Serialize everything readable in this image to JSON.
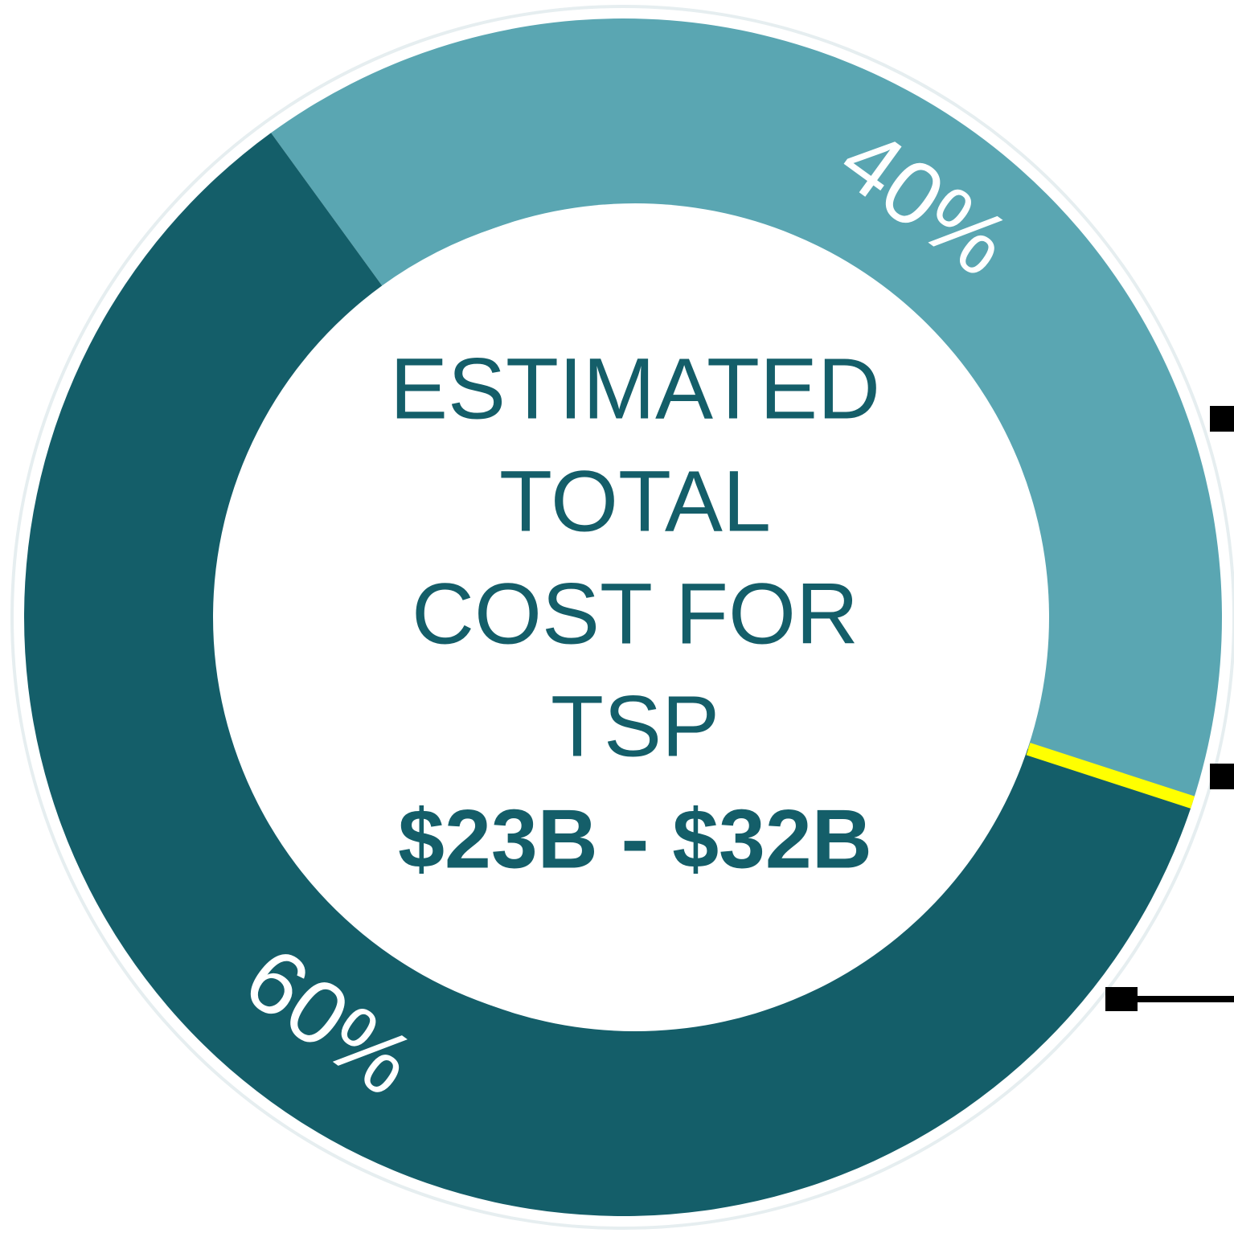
{
  "chart_data": {
    "type": "donut",
    "values": [
      40,
      60
    ],
    "value_labels": [
      "40%",
      "60%"
    ],
    "colors": [
      "#5aa6b2",
      "#145e69"
    ],
    "separator_color": "#ffff00",
    "center_label": [
      "ESTIMATED",
      "TOTAL",
      "COST FOR",
      "TSP"
    ],
    "center_value": "$23B - $32B"
  }
}
